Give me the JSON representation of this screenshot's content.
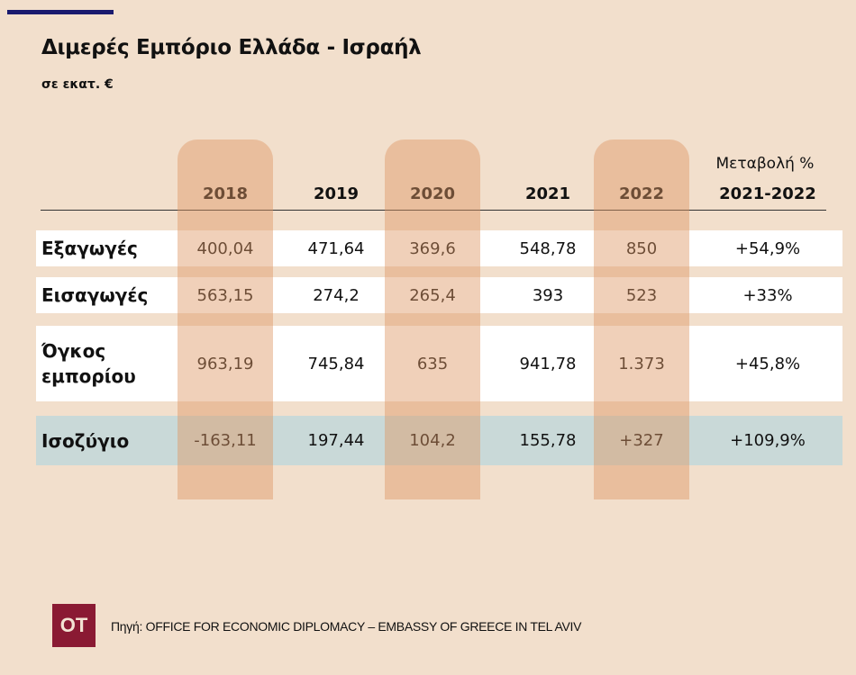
{
  "title": "Διμερές Εμπόριο Ελλάδα - Ισραήλ",
  "subtitle": "σε εκατ. €",
  "logo": "OT",
  "source": "Πηγή: OFFICE FOR ECONOMIC DIPLOMACY – EMBASSY OF GREECE IN TEL AVIV",
  "colors": {
    "background": "#f2dfcc",
    "highlight_columns": "#e8bea0",
    "balance_row": "#c9d9d8",
    "logo": "#8a1a33",
    "topbar": "#1a1a6e"
  },
  "chart_data": {
    "type": "table",
    "title": "Διμερές Εμπόριο Ελλάδα - Ισραήλ",
    "subtitle": "σε εκατ. €",
    "columns": [
      "2018",
      "2019",
      "2020",
      "2021",
      "2022"
    ],
    "change_header": [
      "Μεταβολή %",
      "2021-2022"
    ],
    "highlighted_columns": [
      "2018",
      "2020",
      "2022"
    ],
    "rows": [
      {
        "label": "Εξαγωγές",
        "values": [
          "400,04",
          "471,64",
          "369,6",
          "548,78",
          "850"
        ],
        "change": "+54,9%"
      },
      {
        "label": "Εισαγωγές",
        "values": [
          "563,15",
          "274,2",
          "265,4",
          "393",
          "523"
        ],
        "change": "+33%"
      },
      {
        "label": "Όγκος εμπορίου",
        "values": [
          "963,19",
          "745,84",
          "635",
          "941,78",
          "1.373"
        ],
        "change": "+45,8%"
      },
      {
        "label": "Ισοζύγιο",
        "values": [
          "-163,11",
          "197,44",
          "104,2",
          "155,78",
          "+327"
        ],
        "change": "+109,9%"
      }
    ]
  }
}
